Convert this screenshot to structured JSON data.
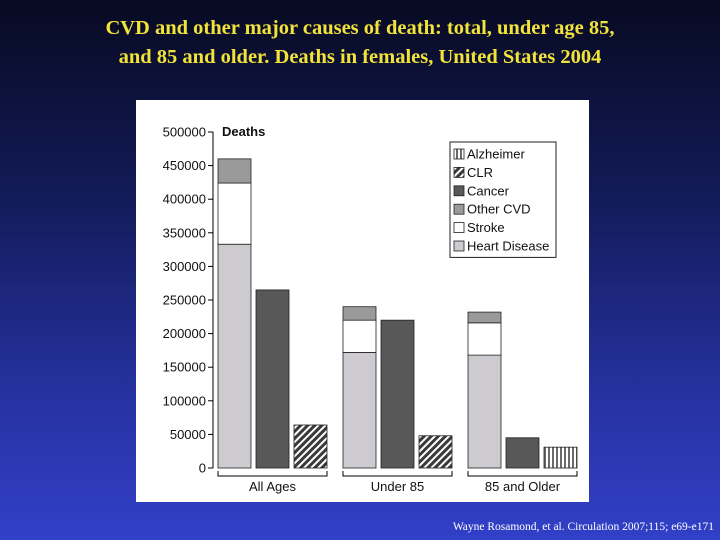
{
  "title": {
    "line1": "CVD and other major causes of death: total, under age 85,",
    "line2": "and 85 and older. Deaths in females, United States 2004"
  },
  "citation": "Wayne Rosamond, et al. Circulation  2007;115; e69-e171",
  "colors": {
    "background_top": "#080a22",
    "background_bottom": "#3140c8",
    "title": "#f2e33a",
    "heart_disease": "#cdcbd0",
    "stroke": "#ffffff",
    "other_cvd": "#9a9a9a",
    "cancer": "#585858",
    "clr": "#3a3a3a",
    "alzheimer": "#b0b0b0"
  },
  "chart_data": {
    "type": "bar",
    "ylabel": "Deaths",
    "ylim": [
      0,
      500000
    ],
    "yticks": [
      0,
      50000,
      100000,
      150000,
      200000,
      250000,
      300000,
      350000,
      400000,
      450000,
      500000
    ],
    "grid": false,
    "legend_position": "top-right",
    "legend": [
      "Alzheimer",
      "CLR",
      "Cancer",
      "Other CVD",
      "Stroke",
      "Heart Disease"
    ],
    "groups": [
      {
        "label": "All Ages",
        "bars": [
          {
            "kind": "stacked",
            "segments": [
              {
                "series": "Heart Disease",
                "value": 333000
              },
              {
                "series": "Stroke",
                "value": 91000
              },
              {
                "series": "Other CVD",
                "value": 36000
              }
            ]
          },
          {
            "kind": "single",
            "series": "Cancer",
            "value": 265000
          },
          {
            "kind": "single",
            "series": "CLR",
            "value": 64000
          }
        ]
      },
      {
        "label": "Under 85",
        "bars": [
          {
            "kind": "stacked",
            "segments": [
              {
                "series": "Heart Disease",
                "value": 172000
              },
              {
                "series": "Stroke",
                "value": 48000
              },
              {
                "series": "Other CVD",
                "value": 20000
              }
            ]
          },
          {
            "kind": "single",
            "series": "Cancer",
            "value": 220000
          },
          {
            "kind": "single",
            "series": "CLR",
            "value": 48000
          }
        ]
      },
      {
        "label": "85 and Older",
        "bars": [
          {
            "kind": "stacked",
            "segments": [
              {
                "series": "Heart Disease",
                "value": 168000
              },
              {
                "series": "Stroke",
                "value": 48000
              },
              {
                "series": "Other CVD",
                "value": 16000
              }
            ]
          },
          {
            "kind": "single",
            "series": "Cancer",
            "value": 45000
          },
          {
            "kind": "single",
            "series": "Alzheimer",
            "value": 31000
          }
        ]
      }
    ]
  }
}
